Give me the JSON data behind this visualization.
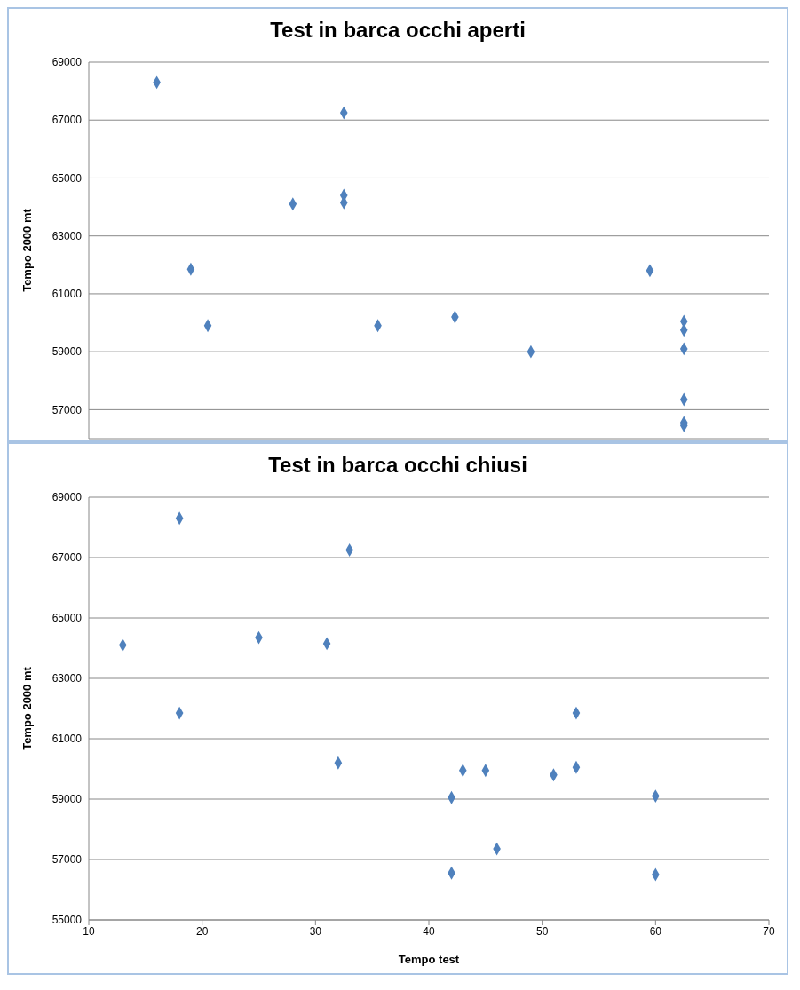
{
  "chart_data": [
    {
      "type": "scatter",
      "title": "Test in barca occhi aperti",
      "ylabel": "Tempo 2000 mt",
      "tick_labels": "y",
      "xlim": [
        10,
        70
      ],
      "ylim": [
        56000,
        69000
      ],
      "yticks": [
        57000,
        59000,
        61000,
        63000,
        65000,
        67000,
        69000
      ],
      "grid": "y",
      "legend": false,
      "marker": "diamond",
      "series": [
        {
          "color": "#4f81bd",
          "x": [
            16,
            32.5,
            28,
            32.5,
            32.5,
            19,
            59.5,
            20.5,
            35.5,
            42.3,
            49,
            62.5,
            62.5,
            62.5,
            62.5,
            62.5,
            62.5
          ],
          "values": [
            68300,
            67250,
            64100,
            64400,
            64150,
            61850,
            61800,
            59900,
            59900,
            60200,
            59000,
            60050,
            59750,
            59100,
            57350,
            56550,
            56450
          ]
        }
      ]
    },
    {
      "type": "scatter",
      "title": "Test in barca occhi chiusi",
      "xlabel": "Tempo test",
      "ylabel": "Tempo 2000 mt",
      "xlim": [
        10,
        70
      ],
      "xticks": [
        10,
        20,
        30,
        40,
        50,
        60,
        70
      ],
      "ylim": [
        55000,
        69000
      ],
      "yticks": [
        55000,
        57000,
        59000,
        61000,
        63000,
        65000,
        67000,
        69000
      ],
      "grid": "y",
      "legend": false,
      "marker": "diamond",
      "series": [
        {
          "color": "#4f81bd",
          "x": [
            13,
            18,
            18,
            25,
            31,
            33,
            32,
            42,
            42,
            43,
            45,
            46,
            51,
            53,
            53,
            60,
            60
          ],
          "values": [
            64100,
            68300,
            61850,
            64350,
            64150,
            67250,
            60200,
            59050,
            56550,
            59950,
            59950,
            57350,
            59800,
            61850,
            60050,
            59100,
            56500
          ]
        }
      ]
    }
  ]
}
